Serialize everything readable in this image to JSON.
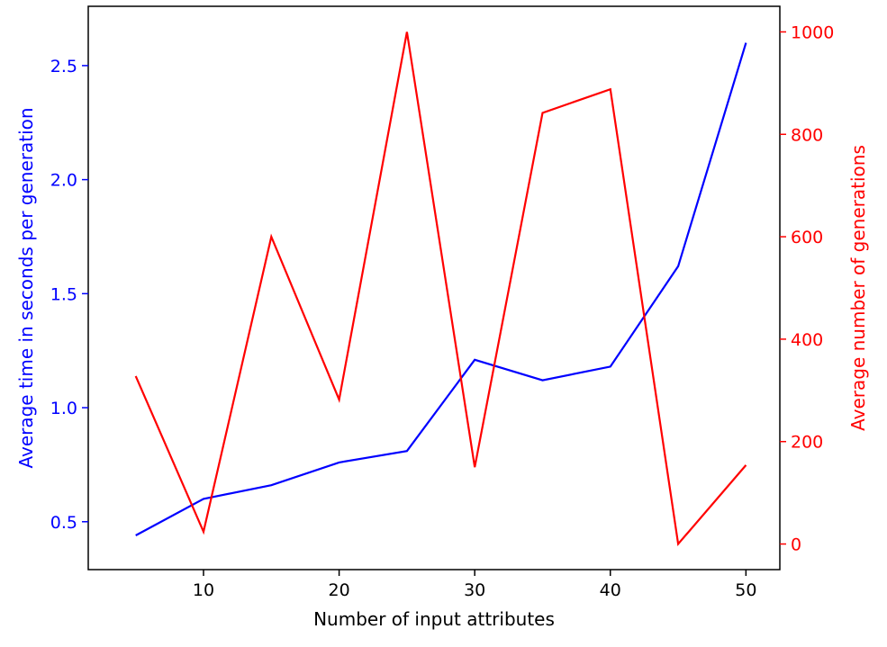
{
  "chart_data": {
    "type": "line",
    "xlabel": "Number of input attributes",
    "x": [
      5,
      10,
      15,
      20,
      25,
      30,
      35,
      40,
      45,
      50
    ],
    "xticks": [
      10,
      20,
      30,
      40,
      50
    ],
    "xlim": [
      1.5,
      52.5
    ],
    "series": [
      {
        "axis": "left",
        "color": "#0000ff",
        "values": [
          0.44,
          0.6,
          0.66,
          0.76,
          0.81,
          1.21,
          1.12,
          1.18,
          1.62,
          2.6
        ]
      },
      {
        "axis": "right",
        "color": "#ff0000",
        "values": [
          328,
          24,
          600,
          282,
          1000,
          150,
          842,
          888,
          0,
          154
        ]
      }
    ],
    "y_left": {
      "label": "Average time in seconds per generation",
      "ticks": [
        0.5,
        1.0,
        1.5,
        2.0,
        2.5
      ],
      "tick_labels": [
        "0.5",
        "1.0",
        "1.5",
        "2.0",
        "2.5"
      ],
      "lim": [
        0.29,
        2.76
      ],
      "color": "#0000ff"
    },
    "y_right": {
      "label": "Average number of generations",
      "ticks": [
        0,
        200,
        400,
        600,
        800,
        1000
      ],
      "tick_labels": [
        "0",
        "200",
        "400",
        "600",
        "800",
        "1000"
      ],
      "lim": [
        -50,
        1050
      ],
      "color": "#ff0000"
    },
    "grid": false,
    "legend": "none"
  }
}
